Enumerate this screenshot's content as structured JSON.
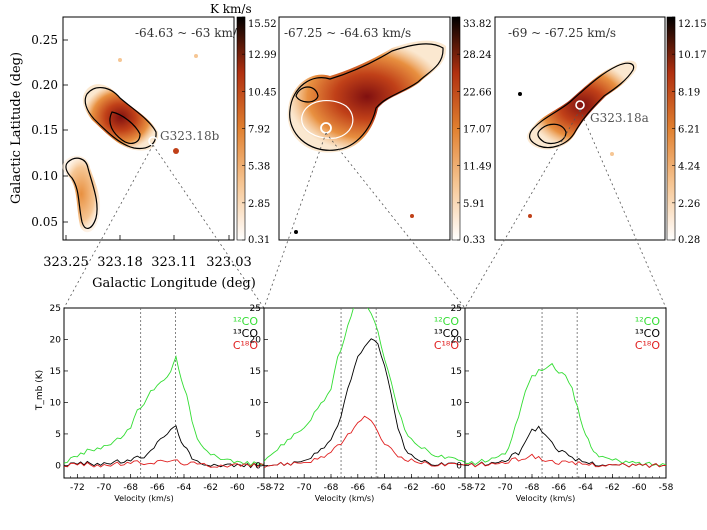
{
  "figure": {
    "colorbar_unit": "K km/s",
    "map_ylabel": "Galactic Latitude (deg)",
    "map_xlabel": "Galactic Longitude (deg)",
    "map_xticks": [
      "323.25",
      "323.18",
      "323.11",
      "323.03"
    ],
    "map_yticks": [
      "0.05",
      "0.10",
      "0.15",
      "0.20",
      "0.25"
    ]
  },
  "maps": [
    {
      "velocity_range": "-64.63 ~ -63 km/s",
      "source_label": "G323.18b",
      "colorbar_ticks": [
        "15.52",
        "12.99",
        "10.45",
        "7.92",
        "5.38",
        "2.85",
        "0.31"
      ]
    },
    {
      "velocity_range": "-67.25 ~ -64.63 km/s",
      "source_label": "",
      "colorbar_ticks": [
        "33.82",
        "28.24",
        "22.66",
        "17.07",
        "11.49",
        "5.91",
        "0.33"
      ]
    },
    {
      "velocity_range": "-69 ~ -67.25 km/s",
      "source_label": "G323.18a",
      "colorbar_ticks": [
        "12.15",
        "10.17",
        "8.19",
        "6.21",
        "4.24",
        "2.26",
        "0.28"
      ]
    }
  ],
  "spectra_labels": {
    "ylabel": "T_mb (K)",
    "xlabel": "Velocity (km/s)",
    "legend_12co": "¹²CO",
    "legend_13co": "¹³CO",
    "legend_c18o": "C¹⁸O",
    "xticks": [
      "-72",
      "-70",
      "-68",
      "-66",
      "-64",
      "-62",
      "-60",
      "-58"
    ],
    "yticks": [
      "0",
      "5",
      "10",
      "15",
      "20",
      "25"
    ]
  },
  "chart_data": [
    {
      "type": "heatmap",
      "panel": "map-1",
      "title": "-64.63 ~ -63 km/s",
      "xlabel": "Galactic Longitude (deg)",
      "ylabel": "Galactic Latitude (deg)",
      "xlim": [
        323.25,
        323.03
      ],
      "ylim": [
        0.02,
        0.27
      ],
      "colorbar_range": [
        0.31,
        15.52
      ],
      "marker": {
        "label": "G323.18b",
        "l": 323.145,
        "b": 0.139
      }
    },
    {
      "type": "heatmap",
      "panel": "map-2",
      "title": "-67.25 ~ -64.63 km/s",
      "colorbar_range": [
        0.33,
        33.82
      ]
    },
    {
      "type": "heatmap",
      "panel": "map-3",
      "title": "-69 ~ -67.25 km/s",
      "colorbar_range": [
        0.28,
        12.15
      ],
      "marker": {
        "label": "G323.18a"
      }
    },
    {
      "type": "line",
      "panel": "spectrum-1",
      "xlabel": "Velocity (km/s)",
      "ylabel": "T_mb (K)",
      "xlim": [
        -73,
        -58
      ],
      "ylim": [
        -2,
        25
      ],
      "vlines": [
        -67.25,
        -64.63
      ],
      "series": [
        {
          "name": "¹²CO",
          "color": "#33dd33",
          "x": [
            -73,
            -72,
            -71,
            -70,
            -69,
            -68,
            -67.5,
            -67,
            -66.5,
            -66,
            -65.5,
            -65,
            -64.6,
            -64.2,
            -63.8,
            -63.4,
            -63,
            -62.5,
            -62,
            -61,
            -60,
            -59,
            -58
          ],
          "y": [
            0.5,
            1.5,
            2.5,
            3,
            4,
            6,
            8.5,
            10,
            12,
            12.5,
            13.5,
            15,
            17,
            14,
            11,
            7,
            4,
            3,
            2,
            1,
            0.5,
            0.3,
            0.2
          ]
        },
        {
          "name": "¹³CO",
          "color": "#000000",
          "x": [
            -73,
            -72,
            -70,
            -68,
            -67,
            -66.5,
            -66,
            -65.5,
            -65,
            -64.6,
            -64.2,
            -63.8,
            -63.4,
            -63,
            -62,
            -61,
            -60,
            -58
          ],
          "y": [
            0,
            0.3,
            0.3,
            0.8,
            1.5,
            2.5,
            3.5,
            4.5,
            5.8,
            6,
            4,
            2.5,
            1,
            0.5,
            0.2,
            0.1,
            0,
            0
          ]
        },
        {
          "name": "C¹⁸O",
          "color": "#e02020",
          "x": [
            -73,
            -72,
            -70,
            -68,
            -66,
            -65,
            -64,
            -63,
            -62,
            -60,
            -58
          ],
          "y": [
            0,
            0.2,
            0,
            0.4,
            0.5,
            0.8,
            0.4,
            0.2,
            0,
            0.1,
            0
          ]
        }
      ]
    },
    {
      "type": "line",
      "panel": "spectrum-2",
      "xlabel": "Velocity (km/s)",
      "ylabel": "T_mb (K)",
      "xlim": [
        -73,
        -58
      ],
      "ylim": [
        -2,
        25
      ],
      "vlines": [
        -67.25,
        -64.63
      ],
      "series": [
        {
          "name": "¹²CO",
          "color": "#33dd33",
          "x": [
            -73,
            -72,
            -71,
            -70,
            -69,
            -68,
            -67.5,
            -67,
            -66.5,
            -66,
            -65.5,
            -65,
            -64.5,
            -64,
            -63.5,
            -63,
            -62.5,
            -62,
            -61,
            -60,
            -59,
            -58
          ],
          "y": [
            1,
            2.5,
            4.5,
            6,
            9,
            12,
            17,
            20,
            24,
            27,
            26,
            24,
            21,
            17,
            13,
            9,
            6,
            4,
            2.5,
            1.5,
            1,
            0.5
          ]
        },
        {
          "name": "¹³CO",
          "color": "#000000",
          "x": [
            -73,
            -71,
            -70,
            -69,
            -68,
            -67.5,
            -67,
            -66.5,
            -66,
            -65.5,
            -65,
            -64.5,
            -64,
            -63.5,
            -63,
            -62.5,
            -62,
            -61,
            -60,
            -58
          ],
          "y": [
            0,
            0.3,
            0.8,
            2,
            4,
            6,
            10,
            14,
            17,
            19,
            20,
            19,
            16,
            11,
            6,
            3,
            1.5,
            0.5,
            0.2,
            0
          ]
        },
        {
          "name": "C¹⁸O",
          "color": "#e02020",
          "x": [
            -73,
            -71,
            -70,
            -69,
            -68,
            -67.5,
            -67,
            -66.5,
            -66,
            -65.5,
            -65,
            -64.5,
            -64,
            -63.5,
            -63,
            -62,
            -61,
            -60,
            -58
          ],
          "y": [
            0,
            0.3,
            0.5,
            1,
            2,
            3,
            4,
            5.5,
            6.5,
            8,
            7,
            5,
            3.5,
            2.5,
            1.5,
            0.8,
            0.3,
            0.1,
            0
          ]
        }
      ]
    },
    {
      "type": "line",
      "panel": "spectrum-3",
      "xlabel": "Velocity (km/s)",
      "xlim": [
        -73,
        -58
      ],
      "ylim": [
        -2,
        25
      ],
      "vlines": [
        -67.25,
        -64.63
      ],
      "series": [
        {
          "name": "¹²CO",
          "color": "#33dd33",
          "x": [
            -73,
            -72,
            -71,
            -70,
            -69.5,
            -69,
            -68.5,
            -68,
            -67.5,
            -67,
            -66.5,
            -66,
            -65.5,
            -65,
            -64.6,
            -64.2,
            -63.8,
            -63.4,
            -63,
            -62,
            -61,
            -60,
            -59,
            -58
          ],
          "y": [
            0.2,
            0.5,
            1,
            2,
            4,
            8,
            12,
            14,
            15,
            15.5,
            16,
            15,
            14,
            12,
            9,
            6,
            4,
            2.5,
            1.5,
            0.8,
            0.5,
            0.3,
            0.2,
            0.1
          ]
        },
        {
          "name": "¹³CO",
          "color": "#000000",
          "x": [
            -73,
            -71,
            -70,
            -69,
            -68.5,
            -68,
            -67.5,
            -67,
            -66.5,
            -66,
            -65.5,
            -65,
            -64,
            -63,
            -62,
            -60,
            -58
          ],
          "y": [
            0,
            0.3,
            0.8,
            2,
            4,
            5.5,
            6,
            5,
            3.5,
            2.5,
            1.8,
            1,
            0.5,
            0.2,
            0,
            0,
            0
          ]
        },
        {
          "name": "C¹⁸O",
          "color": "#e02020",
          "x": [
            -73,
            -71,
            -70,
            -69,
            -68,
            -67.5,
            -67,
            -66,
            -65,
            -64,
            -63,
            -62,
            -60,
            -58
          ],
          "y": [
            0,
            0.2,
            0.5,
            1,
            1.5,
            1.2,
            0.8,
            0.5,
            0.3,
            0.2,
            0.1,
            0,
            0,
            0
          ]
        }
      ]
    }
  ]
}
